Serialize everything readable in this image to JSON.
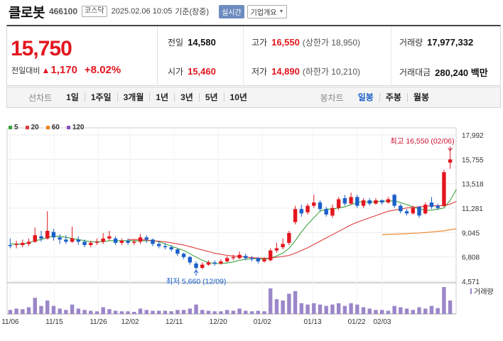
{
  "header": {
    "name": "클로봇",
    "code": "466100",
    "market": "코스닥",
    "date": "2025.02.06 10:05",
    "basis": "기준(장중)",
    "live_label": "실시간",
    "company_info_label": "기업개요"
  },
  "quote": {
    "price": "15,750",
    "change_label": "전일대비",
    "change_value": "1,170",
    "change_pct": "+8.02%",
    "prev_close": {
      "label": "전일",
      "value": "14,580"
    },
    "open": {
      "label": "시가",
      "value": "15,460"
    },
    "high": {
      "label": "고가",
      "value": "16,550",
      "limit_label": "(상한가 18,950)"
    },
    "low": {
      "label": "저가",
      "value": "14,890",
      "limit_label": "(하한가 10,210)"
    },
    "volume": {
      "label": "거래량",
      "value": "17,977,332"
    },
    "amount": {
      "label": "거래대금",
      "value": "280,240 백만"
    }
  },
  "toolbar": {
    "line_label": "선차트",
    "line_periods": [
      "1일",
      "1주일",
      "3개월",
      "1년",
      "3년",
      "5년",
      "10년"
    ],
    "candle_label": "봉차트",
    "candle_periods": [
      "일봉",
      "주봉",
      "월봉"
    ],
    "active_candle": 0
  },
  "legend": [
    {
      "label": "5",
      "color": "#3ca33c"
    },
    {
      "label": "20",
      "color": "#e03a3a"
    },
    {
      "label": "60",
      "color": "#ef7f1a"
    },
    {
      "label": "120",
      "color": "#8a4fbf"
    }
  ],
  "colors": {
    "up": "#e3161f",
    "down": "#1a5fc9",
    "volume": "#9b86c9"
  },
  "chart_data": {
    "type": "candlestick",
    "y_ticks": [
      "17,992",
      "15,755",
      "13,518",
      "11,281",
      "9,045",
      "6,808",
      "4,571"
    ],
    "ylim": [
      4571,
      17992
    ],
    "x_ticks": [
      "11/06",
      "11/15",
      "11/26",
      "12/02",
      "12/11",
      "12/20",
      "01/02",
      "01/13",
      "01/22",
      "02/03"
    ],
    "volume_label": "거래량",
    "high_annotation": "최고 16,550 (02/06)",
    "low_annotation": "최저 5,660 (12/09)",
    "candles": [
      {
        "o": 7900,
        "c": 7800,
        "h": 8500,
        "l": 7600,
        "v": 0.15
      },
      {
        "o": 7900,
        "c": 8000,
        "h": 8300,
        "l": 7600,
        "v": 0.2
      },
      {
        "o": 7900,
        "c": 8100,
        "h": 8400,
        "l": 7700,
        "v": 0.18
      },
      {
        "o": 8000,
        "c": 8200,
        "h": 8500,
        "l": 7800,
        "v": 0.25
      },
      {
        "o": 8200,
        "c": 8800,
        "h": 9500,
        "l": 8100,
        "v": 0.6
      },
      {
        "o": 8700,
        "c": 8500,
        "h": 9200,
        "l": 8200,
        "v": 0.3
      },
      {
        "o": 8500,
        "c": 9200,
        "h": 11000,
        "l": 8400,
        "v": 0.5
      },
      {
        "o": 9100,
        "c": 8600,
        "h": 9400,
        "l": 8300,
        "v": 0.3
      },
      {
        "o": 8600,
        "c": 8400,
        "h": 8900,
        "l": 8000,
        "v": 0.2
      },
      {
        "o": 8400,
        "c": 8200,
        "h": 8800,
        "l": 8000,
        "v": 0.15
      },
      {
        "o": 8200,
        "c": 8500,
        "h": 9600,
        "l": 8100,
        "v": 0.35
      },
      {
        "o": 8400,
        "c": 8200,
        "h": 8700,
        "l": 7900,
        "v": 0.2
      },
      {
        "o": 8200,
        "c": 7900,
        "h": 8400,
        "l": 7700,
        "v": 0.15
      },
      {
        "o": 7900,
        "c": 8100,
        "h": 8300,
        "l": 7700,
        "v": 0.12
      },
      {
        "o": 8100,
        "c": 8200,
        "h": 8500,
        "l": 7900,
        "v": 0.1
      },
      {
        "o": 8200,
        "c": 8500,
        "h": 9000,
        "l": 8000,
        "v": 0.25
      },
      {
        "o": 8500,
        "c": 8700,
        "h": 9200,
        "l": 8300,
        "v": 0.18
      },
      {
        "o": 8500,
        "c": 8100,
        "h": 8700,
        "l": 7900,
        "v": 0.12
      },
      {
        "o": 8100,
        "c": 8300,
        "h": 8500,
        "l": 7900,
        "v": 0.1
      },
      {
        "o": 8300,
        "c": 8100,
        "h": 8500,
        "l": 7900,
        "v": 0.1
      },
      {
        "o": 8100,
        "c": 8200,
        "h": 8400,
        "l": 7900,
        "v": 0.08
      },
      {
        "o": 8200,
        "c": 8600,
        "h": 8900,
        "l": 8000,
        "v": 0.2
      },
      {
        "o": 8600,
        "c": 8400,
        "h": 8800,
        "l": 8100,
        "v": 0.15
      },
      {
        "o": 8400,
        "c": 8000,
        "h": 8500,
        "l": 7800,
        "v": 0.12
      },
      {
        "o": 8000,
        "c": 7800,
        "h": 8300,
        "l": 7600,
        "v": 0.12
      },
      {
        "o": 7800,
        "c": 7700,
        "h": 8100,
        "l": 7500,
        "v": 0.12
      },
      {
        "o": 7700,
        "c": 7500,
        "h": 7900,
        "l": 7300,
        "v": 0.1
      },
      {
        "o": 7500,
        "c": 7100,
        "h": 7600,
        "l": 6900,
        "v": 0.15
      },
      {
        "o": 7100,
        "c": 6800,
        "h": 7200,
        "l": 6600,
        "v": 0.15
      },
      {
        "o": 6800,
        "c": 6300,
        "h": 6900,
        "l": 6100,
        "v": 0.2
      },
      {
        "o": 6200,
        "c": 5800,
        "h": 6400,
        "l": 5660,
        "v": 0.35
      },
      {
        "o": 5800,
        "c": 6100,
        "h": 6300,
        "l": 5700,
        "v": 0.15
      },
      {
        "o": 6100,
        "c": 6300,
        "h": 6500,
        "l": 6000,
        "v": 0.12
      },
      {
        "o": 6300,
        "c": 6200,
        "h": 6500,
        "l": 6000,
        "v": 0.1
      },
      {
        "o": 6200,
        "c": 6400,
        "h": 6600,
        "l": 6100,
        "v": 0.1
      },
      {
        "o": 6400,
        "c": 6700,
        "h": 6900,
        "l": 6300,
        "v": 0.15
      },
      {
        "o": 6700,
        "c": 6800,
        "h": 7000,
        "l": 6500,
        "v": 0.12
      },
      {
        "o": 6700,
        "c": 7000,
        "h": 7300,
        "l": 6600,
        "v": 0.2
      },
      {
        "o": 6900,
        "c": 6700,
        "h": 7100,
        "l": 6500,
        "v": 0.12
      },
      {
        "o": 6700,
        "c": 6600,
        "h": 6900,
        "l": 6400,
        "v": 0.1
      },
      {
        "o": 6700,
        "c": 6400,
        "h": 6800,
        "l": 6200,
        "v": 0.12
      },
      {
        "o": 6400,
        "c": 6600,
        "h": 6800,
        "l": 6300,
        "v": 0.1
      },
      {
        "o": 6500,
        "c": 7400,
        "h": 7600,
        "l": 6400,
        "v": 0.95
      },
      {
        "o": 7400,
        "c": 7600,
        "h": 8100,
        "l": 7200,
        "v": 0.55
      },
      {
        "o": 7700,
        "c": 8000,
        "h": 8500,
        "l": 7500,
        "v": 0.5
      },
      {
        "o": 8100,
        "c": 9000,
        "h": 9200,
        "l": 7900,
        "v": 0.75
      },
      {
        "o": 10000,
        "c": 11200,
        "h": 11500,
        "l": 9800,
        "v": 0.85
      },
      {
        "o": 11200,
        "c": 10800,
        "h": 11600,
        "l": 10500,
        "v": 0.4
      },
      {
        "o": 10900,
        "c": 11500,
        "h": 11700,
        "l": 10700,
        "v": 0.35
      },
      {
        "o": 11500,
        "c": 11800,
        "h": 12500,
        "l": 11300,
        "v": 0.4
      },
      {
        "o": 11800,
        "c": 11200,
        "h": 12000,
        "l": 11000,
        "v": 0.35
      },
      {
        "o": 11200,
        "c": 10700,
        "h": 11400,
        "l": 10500,
        "v": 0.3
      },
      {
        "o": 10600,
        "c": 11300,
        "h": 11600,
        "l": 10400,
        "v": 0.35
      },
      {
        "o": 11300,
        "c": 12100,
        "h": 12300,
        "l": 11100,
        "v": 0.4
      },
      {
        "o": 12200,
        "c": 11700,
        "h": 12500,
        "l": 11500,
        "v": 0.3
      },
      {
        "o": 11700,
        "c": 12300,
        "h": 12700,
        "l": 11600,
        "v": 0.4
      },
      {
        "o": 12300,
        "c": 11500,
        "h": 12500,
        "l": 11300,
        "v": 0.35
      },
      {
        "o": 11500,
        "c": 12000,
        "h": 12200,
        "l": 11300,
        "v": 0.25
      },
      {
        "o": 12000,
        "c": 11700,
        "h": 12200,
        "l": 11500,
        "v": 0.2
      },
      {
        "o": 11700,
        "c": 12000,
        "h": 12200,
        "l": 11600,
        "v": 0.15
      },
      {
        "o": 12000,
        "c": 11800,
        "h": 12100,
        "l": 11600,
        "v": 0.15
      },
      {
        "o": 11800,
        "c": 12100,
        "h": 12300,
        "l": 11700,
        "v": 0.12
      },
      {
        "o": 12500,
        "c": 11500,
        "h": 12600,
        "l": 11300,
        "v": 0.3
      },
      {
        "o": 11500,
        "c": 11000,
        "h": 11700,
        "l": 10800,
        "v": 0.25
      },
      {
        "o": 11000,
        "c": 10800,
        "h": 11200,
        "l": 10600,
        "v": 0.2
      },
      {
        "o": 10800,
        "c": 11300,
        "h": 11500,
        "l": 10700,
        "v": 0.15
      },
      {
        "o": 11400,
        "c": 10600,
        "h": 11500,
        "l": 10400,
        "v": 0.25
      },
      {
        "o": 10800,
        "c": 11600,
        "h": 11800,
        "l": 10700,
        "v": 0.2
      },
      {
        "o": 11800,
        "c": 11400,
        "h": 12300,
        "l": 11200,
        "v": 0.3
      },
      {
        "o": 11500,
        "c": 11300,
        "h": 11700,
        "l": 11100,
        "v": 0.22
      },
      {
        "o": 11500,
        "c": 14580,
        "h": 14800,
        "l": 11400,
        "v": 1.0
      },
      {
        "o": 15460,
        "c": 15750,
        "h": 16550,
        "l": 14890,
        "v": 0.5
      }
    ],
    "ma5": [
      8000,
      8000,
      8000,
      8100,
      8300,
      8400,
      8600,
      8700,
      8700,
      8600,
      8500,
      8400,
      8300,
      8200,
      8200,
      8200,
      8300,
      8300,
      8300,
      8300,
      8300,
      8300,
      8300,
      8300,
      8200,
      8000,
      7800,
      7600,
      7400,
      7100,
      6800,
      6500,
      6300,
      6200,
      6200,
      6250,
      6350,
      6500,
      6600,
      6650,
      6650,
      6600,
      6700,
      6900,
      7150,
      7600,
      8300,
      9100,
      9800,
      10400,
      11000,
      11200,
      11200,
      11300,
      11400,
      11600,
      11800,
      11900,
      11800,
      11900,
      11900,
      11950,
      11950,
      11800,
      11600,
      11400,
      11200,
      11100,
      11100,
      11200,
      11300,
      12000,
      13000
    ],
    "ma20": [
      null,
      null,
      null,
      null,
      null,
      null,
      null,
      null,
      null,
      null,
      null,
      null,
      null,
      null,
      null,
      null,
      null,
      null,
      null,
      8400,
      8400,
      8400,
      8350,
      8300,
      8250,
      8200,
      8100,
      8000,
      7900,
      7750,
      7600,
      7450,
      7300,
      7150,
      7050,
      6950,
      6900,
      6850,
      6800,
      6750,
      6700,
      6680,
      6700,
      6780,
      6850,
      6950,
      7150,
      7400,
      7650,
      7950,
      8250,
      8550,
      8850,
      9150,
      9450,
      9750,
      10000,
      10200,
      10400,
      10600,
      10800,
      11000,
      11100,
      11200,
      11300,
      11350,
      11400,
      11450,
      11500,
      11500,
      11500,
      11650,
      11900
    ],
    "ma60": [
      null,
      null,
      null,
      null,
      null,
      null,
      null,
      null,
      null,
      null,
      null,
      null,
      null,
      null,
      null,
      null,
      null,
      null,
      null,
      null,
      null,
      null,
      null,
      null,
      null,
      null,
      null,
      null,
      null,
      null,
      null,
      null,
      null,
      null,
      null,
      null,
      null,
      null,
      null,
      null,
      null,
      null,
      null,
      null,
      null,
      null,
      null,
      null,
      null,
      null,
      null,
      null,
      null,
      null,
      null,
      null,
      null,
      null,
      null,
      null,
      8850,
      8880,
      8900,
      8920,
      8950,
      8980,
      9000,
      9050,
      9100,
      9150,
      9200,
      9300,
      9400
    ]
  }
}
